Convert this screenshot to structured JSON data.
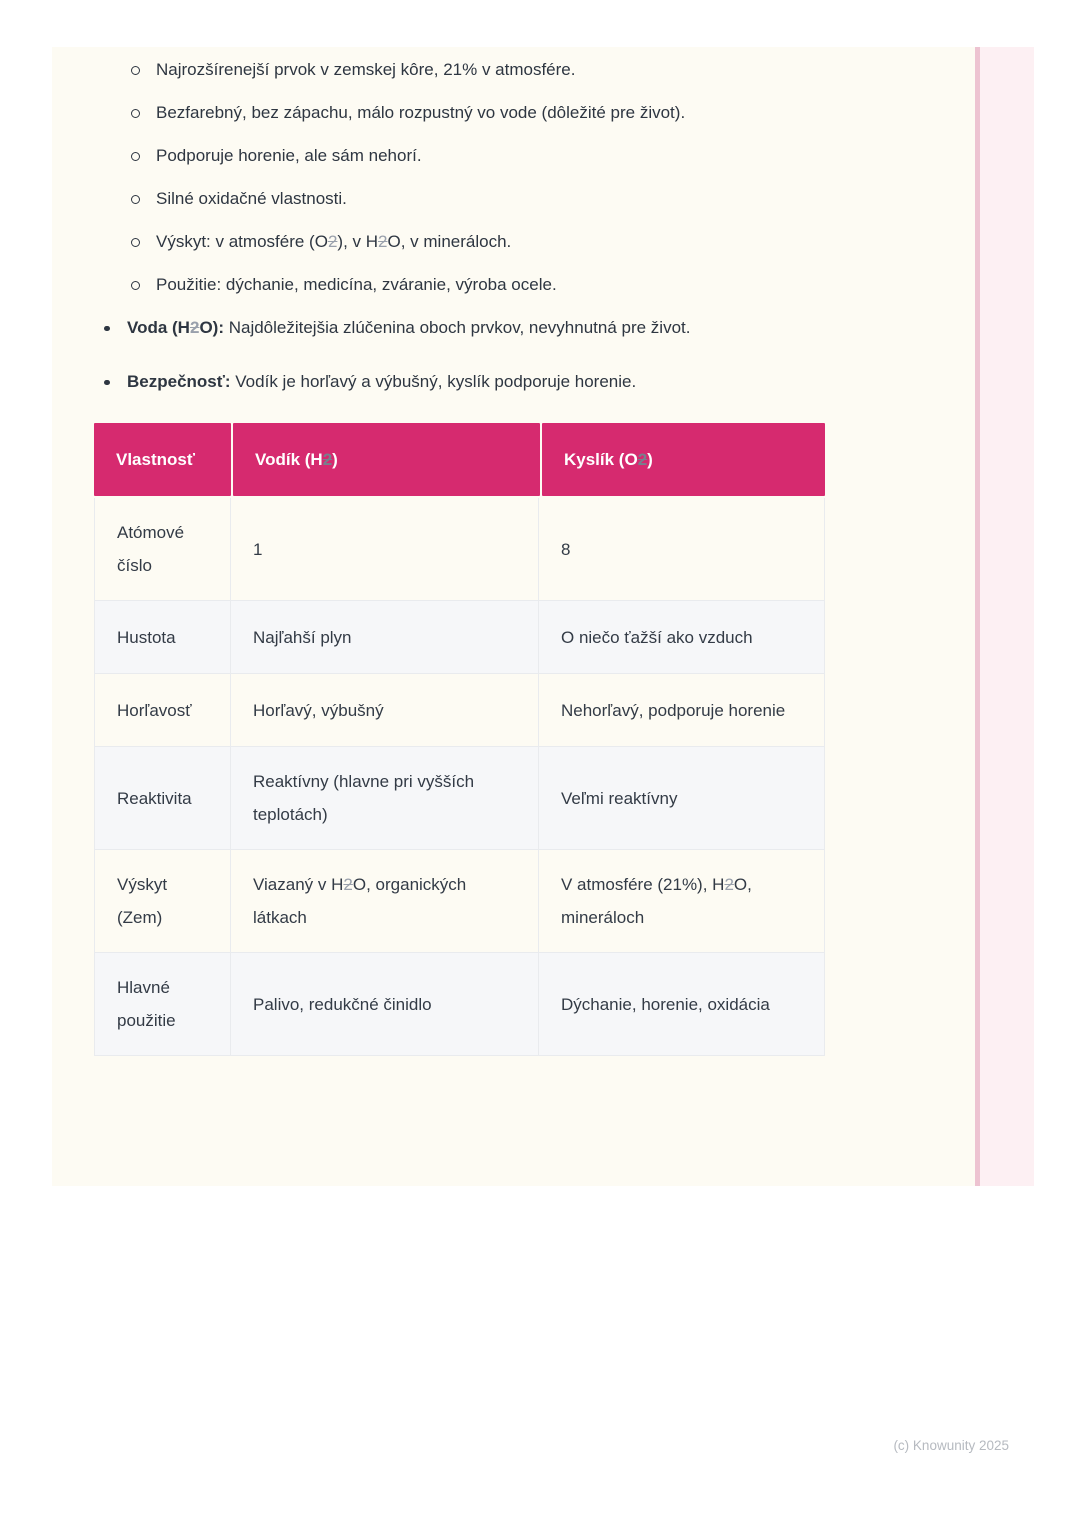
{
  "colors": {
    "accent": "#d62a6f",
    "card_bg": "#fdfbf3",
    "row_alt": "#f6f7f9",
    "border": "#e9ebee",
    "text": "#2e3641",
    "sub2": "#99a0ab",
    "sub2_on_pink": "#77808d",
    "stripe_line": "#edc3d1",
    "stripe_panel": "#fdf0f3",
    "footer": "#b6bac0"
  },
  "document": {
    "sub_bullets": [
      {
        "segments": [
          {
            "t": "Najrozšírenejší prvok v zemskej kôre, 21% v atmosfére."
          }
        ]
      },
      {
        "segments": [
          {
            "t": "Bezfarebný, bez zápachu, málo rozpustný vo vode (dôležité pre život)."
          }
        ]
      },
      {
        "segments": [
          {
            "t": "Podporuje horenie, ale sám nehorí."
          }
        ]
      },
      {
        "segments": [
          {
            "t": "Silné oxidačné vlastnosti."
          }
        ]
      },
      {
        "segments": [
          {
            "t": "Výskyt: v atmosfére (O"
          },
          {
            "t": "2",
            "strike": true
          },
          {
            "t": "), v H"
          },
          {
            "t": "2",
            "strike": true
          },
          {
            "t": "O, v mineráloch."
          }
        ]
      },
      {
        "segments": [
          {
            "t": "Použitie: dýchanie, medicína, zváranie, výroba ocele."
          }
        ]
      }
    ],
    "main_bullets": [
      {
        "bold": [
          {
            "t": "Voda (H"
          },
          {
            "t": "2",
            "strike": true
          },
          {
            "t": "O):"
          }
        ],
        "rest": [
          {
            "t": " Najdôležitejšia zlúčenina oboch prvkov, nevyhnutná pre život."
          }
        ]
      },
      {
        "bold": [
          {
            "t": "Bezpečnosť:"
          }
        ],
        "rest": [
          {
            "t": " Vodík je horľavý a výbušný, kyslík podporuje horenie."
          }
        ]
      }
    ],
    "table": {
      "headers": [
        {
          "segments": [
            {
              "t": "Vlastnosť"
            }
          ]
        },
        {
          "segments": [
            {
              "t": "Vodík (H"
            },
            {
              "t": "2",
              "strike": true
            },
            {
              "t": ")"
            }
          ]
        },
        {
          "segments": [
            {
              "t": "Kyslík (O"
            },
            {
              "t": "2",
              "strike": true
            },
            {
              "t": ")"
            }
          ]
        }
      ],
      "rows": [
        {
          "cells": [
            [
              {
                "t": "Atómové číslo"
              }
            ],
            [
              {
                "t": "1"
              }
            ],
            [
              {
                "t": "8"
              }
            ]
          ]
        },
        {
          "cells": [
            [
              {
                "t": "Hustota"
              }
            ],
            [
              {
                "t": "Najľahší plyn"
              }
            ],
            [
              {
                "t": "O niečo ťažší ako vzduch"
              }
            ]
          ]
        },
        {
          "cells": [
            [
              {
                "t": "Horľavosť"
              }
            ],
            [
              {
                "t": "Horľavý, výbušný"
              }
            ],
            [
              {
                "t": "Nehorľavý, podporuje horenie"
              }
            ]
          ]
        },
        {
          "cells": [
            [
              {
                "t": "Reaktivita"
              }
            ],
            [
              {
                "t": "Reaktívny (hlavne pri vyšších teplotách)"
              }
            ],
            [
              {
                "t": "Veľmi reaktívny"
              }
            ]
          ]
        },
        {
          "cells": [
            [
              {
                "t": "Výskyt (Zem)"
              }
            ],
            [
              {
                "t": "Viazaný v H"
              },
              {
                "t": "2",
                "strike": true
              },
              {
                "t": "O, organických látkach"
              }
            ],
            [
              {
                "t": "V atmosfére (21%), H"
              },
              {
                "t": "2",
                "strike": true
              },
              {
                "t": "O, mineráloch"
              }
            ]
          ]
        },
        {
          "cells": [
            [
              {
                "t": "Hlavné použitie"
              }
            ],
            [
              {
                "t": "Palivo, redukčné činidlo"
              }
            ],
            [
              {
                "t": "Dýchanie, horenie, oxidácia"
              }
            ]
          ]
        }
      ]
    },
    "footer": {
      "copyright": "(c) Knowunity 2025"
    }
  }
}
